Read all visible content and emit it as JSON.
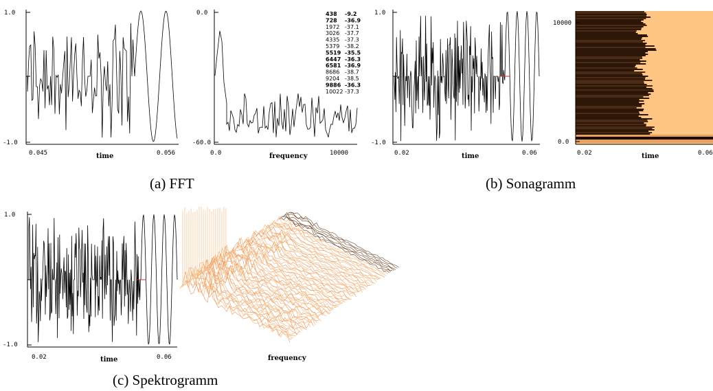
{
  "panels": [
    {
      "caption": "(a) FFT",
      "plots": [
        {
          "y_ticks": [
            "1.0",
            "-1.0"
          ],
          "x_ticks": [
            "0.045",
            "0.056"
          ],
          "x_label": "time"
        },
        {
          "y_ticks": [
            "0.0",
            "-60.0"
          ],
          "x_ticks": [
            "0.0",
            "10000"
          ],
          "x_label": "frequency",
          "peaks": [
            {
              "freq": "438",
              "level": "-9.2",
              "bold": true
            },
            {
              "freq": "728",
              "level": "-36.9",
              "bold": true
            },
            {
              "freq": "1972",
              "level": "-37.1",
              "bold": false
            },
            {
              "freq": "3026",
              "level": "-37.7",
              "bold": false
            },
            {
              "freq": "4335",
              "level": "-37.3",
              "bold": false
            },
            {
              "freq": "5379",
              "level": "-38.2",
              "bold": false
            },
            {
              "freq": "5519",
              "level": "-35.5",
              "bold": true
            },
            {
              "freq": "6447",
              "level": "-36.3",
              "bold": true
            },
            {
              "freq": "6581",
              "level": "-36.9",
              "bold": true
            },
            {
              "freq": "8686",
              "level": "-38.7",
              "bold": false
            },
            {
              "freq": "9204",
              "level": "-38.5",
              "bold": false
            },
            {
              "freq": "9886",
              "level": "-36.3",
              "bold": true
            },
            {
              "freq": "10022",
              "level": "-37.3",
              "bold": false
            }
          ]
        }
      ]
    },
    {
      "caption": "(b) Sonagramm",
      "plots": [
        {
          "y_ticks": [
            "1.0",
            "-1.0"
          ],
          "x_ticks": [
            "0.02",
            "0.06"
          ],
          "x_label": "time"
        },
        {
          "y_ticks": [
            "10000",
            "0.0"
          ],
          "x_ticks": [
            "0.02",
            "0.06"
          ],
          "x_label": "time"
        }
      ]
    },
    {
      "caption": "(c) Spektrogramm",
      "plots": [
        {
          "y_ticks": [
            "1.0",
            "-1.0"
          ],
          "x_ticks": [
            "0.02",
            "0.06"
          ],
          "x_label": "time"
        },
        {
          "x_label": "frequency"
        }
      ]
    }
  ]
}
